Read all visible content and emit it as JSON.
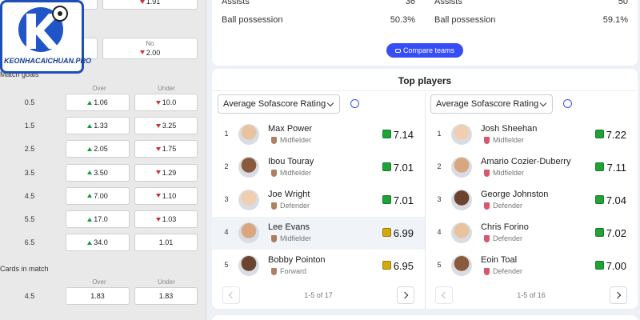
{
  "logo": {
    "text": "KEONHACAICHUAN.PRO"
  },
  "left_panel": {
    "top_row": {
      "value": "1.91",
      "trend": "down"
    },
    "second_row": {
      "label": "No",
      "value": "2.00",
      "trend": "down"
    },
    "match_goals": {
      "title": "Match goals",
      "headers": [
        "Over",
        "Under"
      ],
      "rows": [
        {
          "line": "0.5",
          "over": "1.06",
          "over_trend": "up",
          "under": "10.0",
          "under_trend": "down"
        },
        {
          "line": "1.5",
          "over": "1.33",
          "over_trend": "up",
          "under": "3.25",
          "under_trend": "down"
        },
        {
          "line": "2.5",
          "over": "2.05",
          "over_trend": "up",
          "under": "1.75",
          "under_trend": "down"
        },
        {
          "line": "3.5",
          "over": "3.50",
          "over_trend": "up",
          "under": "1.29",
          "under_trend": "down"
        },
        {
          "line": "4.5",
          "over": "7.00",
          "over_trend": "up",
          "under": "1.10",
          "under_trend": "down"
        },
        {
          "line": "5.5",
          "over": "17.0",
          "over_trend": "up",
          "under": "1.03",
          "under_trend": "down"
        },
        {
          "line": "6.5",
          "over": "34.0",
          "over_trend": "up",
          "under": "1.01",
          "under_trend": null
        }
      ]
    },
    "cards_in_match": {
      "title": "Cards in match",
      "headers": [
        "Over",
        "Under"
      ],
      "rows": [
        {
          "line": "4.5",
          "over": "1.83",
          "over_trend": null,
          "under": "1.83",
          "under_trend": null
        }
      ]
    }
  },
  "team_stats": {
    "home": [
      {
        "label": "Assists",
        "value": "36"
      },
      {
        "label": "Ball possession",
        "value": "50.3%"
      }
    ],
    "away": [
      {
        "label": "Assists",
        "value": "50"
      },
      {
        "label": "Ball possession",
        "value": "59.1%"
      }
    ],
    "compare_button": "Compare teams"
  },
  "top_players": {
    "title": "Top players",
    "columns": [
      {
        "dropdown": "Average Sofascore Rating",
        "pagination": "1-5 of 17",
        "players": [
          {
            "rank": "1",
            "name": "Max Power",
            "position": "Midfielder",
            "rating": "7.14"
          },
          {
            "rank": "2",
            "name": "Ibou Touray",
            "position": "Midfielder",
            "rating": "7.01"
          },
          {
            "rank": "3",
            "name": "Joe Wright",
            "position": "Defender",
            "rating": "7.01"
          },
          {
            "rank": "4",
            "name": "Lee Evans",
            "position": "Midfielder",
            "rating": "6.99",
            "highlighted": true
          },
          {
            "rank": "5",
            "name": "Bobby Pointon",
            "position": "Forward",
            "rating": "6.95"
          }
        ]
      },
      {
        "dropdown": "Average Sofascore Rating",
        "pagination": "1-5 of 16",
        "players": [
          {
            "rank": "1",
            "name": "Josh Sheehan",
            "position": "Midfielder",
            "rating": "7.22"
          },
          {
            "rank": "2",
            "name": "Amario Cozier-Duberry",
            "position": "Midfielder",
            "rating": "7.11"
          },
          {
            "rank": "3",
            "name": "George Johnston",
            "position": "Defender",
            "rating": "7.04"
          },
          {
            "rank": "4",
            "name": "Chris Forino",
            "position": "Defender",
            "rating": "7.02"
          },
          {
            "rank": "5",
            "name": "Eoin Toal",
            "position": "Defender",
            "rating": "7.00"
          }
        ]
      }
    ]
  }
}
